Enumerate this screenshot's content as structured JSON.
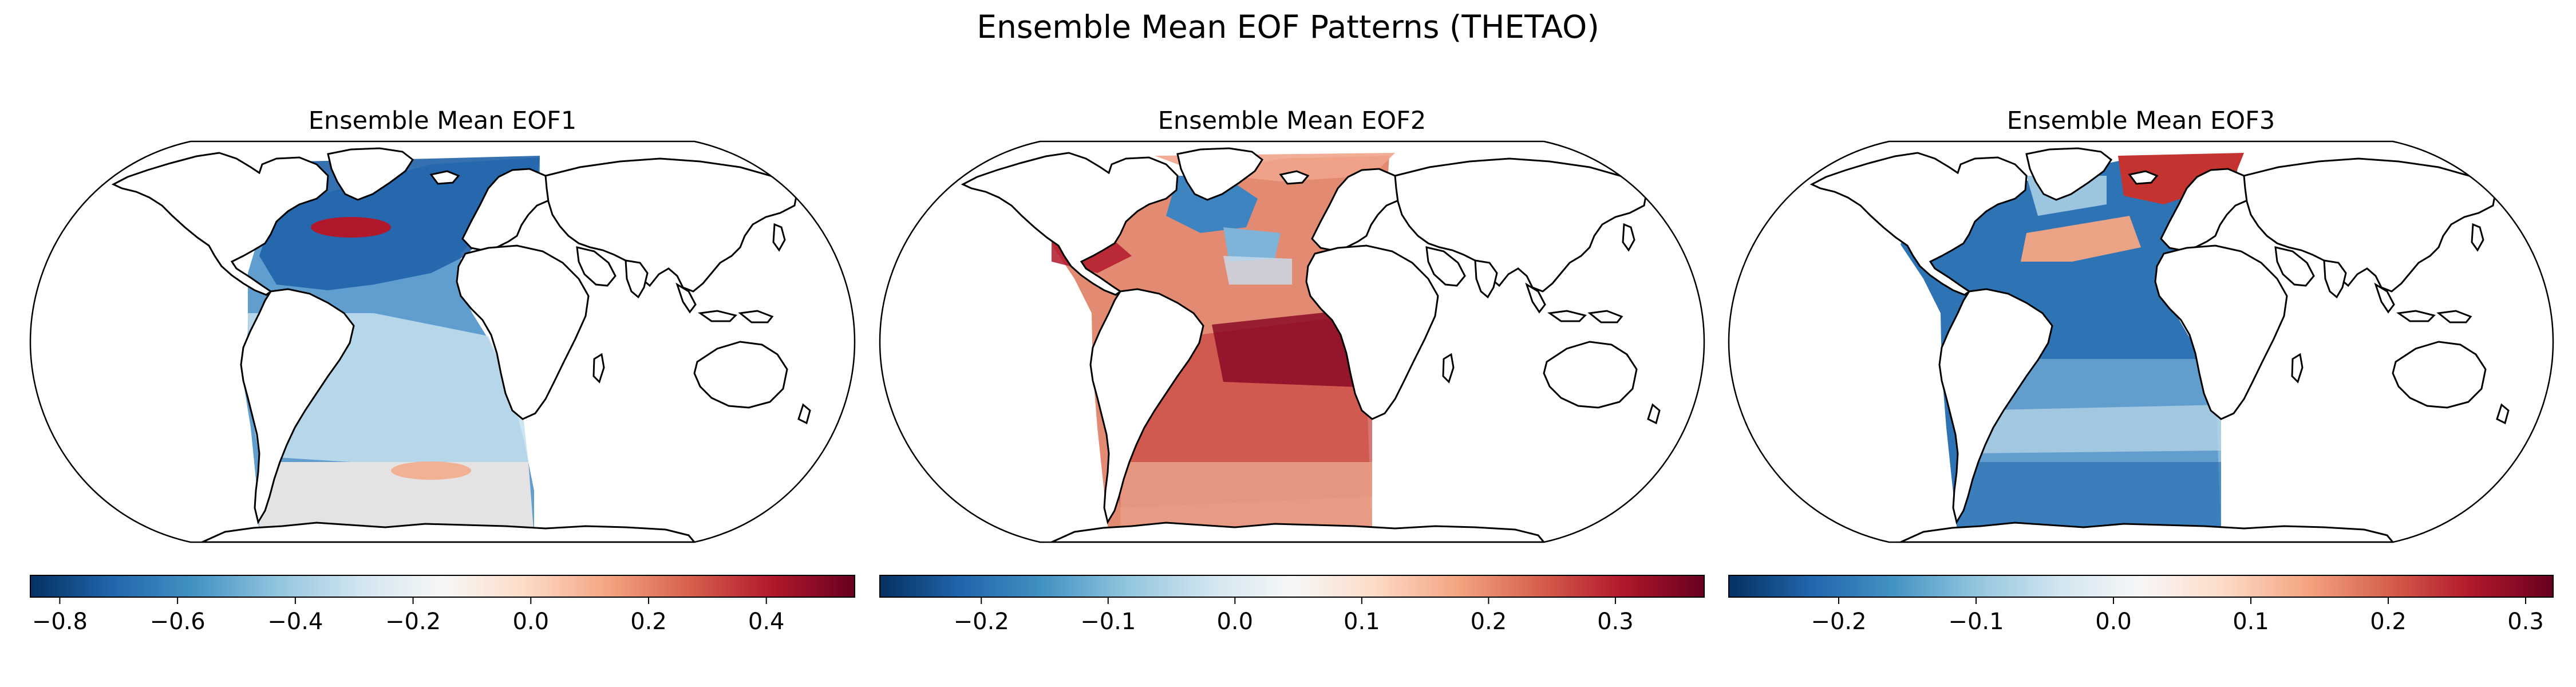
{
  "figure": {
    "title": "Ensemble Mean EOF Patterns (THETAO)"
  },
  "colors": {
    "colormap": [
      "#053061",
      "#2166ac",
      "#4393c3",
      "#92c5de",
      "#d1e5f0",
      "#f7f7f7",
      "#fddbc7",
      "#f4a582",
      "#d6604d",
      "#b2182b",
      "#67001f"
    ],
    "coastline": "#000000",
    "land": "#ffffff"
  },
  "icons": {
    "map_projection": "robinson-world-map",
    "basemap": "coastline-outline"
  },
  "panels": [
    {
      "title": "Ensemble Mean EOF1",
      "colorbar": {
        "vmin": -0.85,
        "vmax": 0.55,
        "ticks": [
          -0.8,
          -0.6,
          -0.4,
          -0.2,
          0.0,
          0.2,
          0.4
        ],
        "tick_labels": [
          "−0.8",
          "−0.6",
          "−0.4",
          "−0.2",
          "0.0",
          "0.2",
          "0.4"
        ]
      }
    },
    {
      "title": "Ensemble Mean EOF2",
      "colorbar": {
        "vmin": -0.28,
        "vmax": 0.37,
        "ticks": [
          -0.2,
          -0.1,
          0.0,
          0.1,
          0.2,
          0.3
        ],
        "tick_labels": [
          "−0.2",
          "−0.1",
          "0.0",
          "0.1",
          "0.2",
          "0.3"
        ]
      }
    },
    {
      "title": "Ensemble Mean EOF3",
      "colorbar": {
        "vmin": -0.28,
        "vmax": 0.32,
        "ticks": [
          -0.2,
          -0.1,
          0.0,
          0.1,
          0.2,
          0.3
        ],
        "tick_labels": [
          "−0.2",
          "−0.1",
          "0.0",
          "0.1",
          "0.2",
          "0.3"
        ]
      }
    }
  ]
}
